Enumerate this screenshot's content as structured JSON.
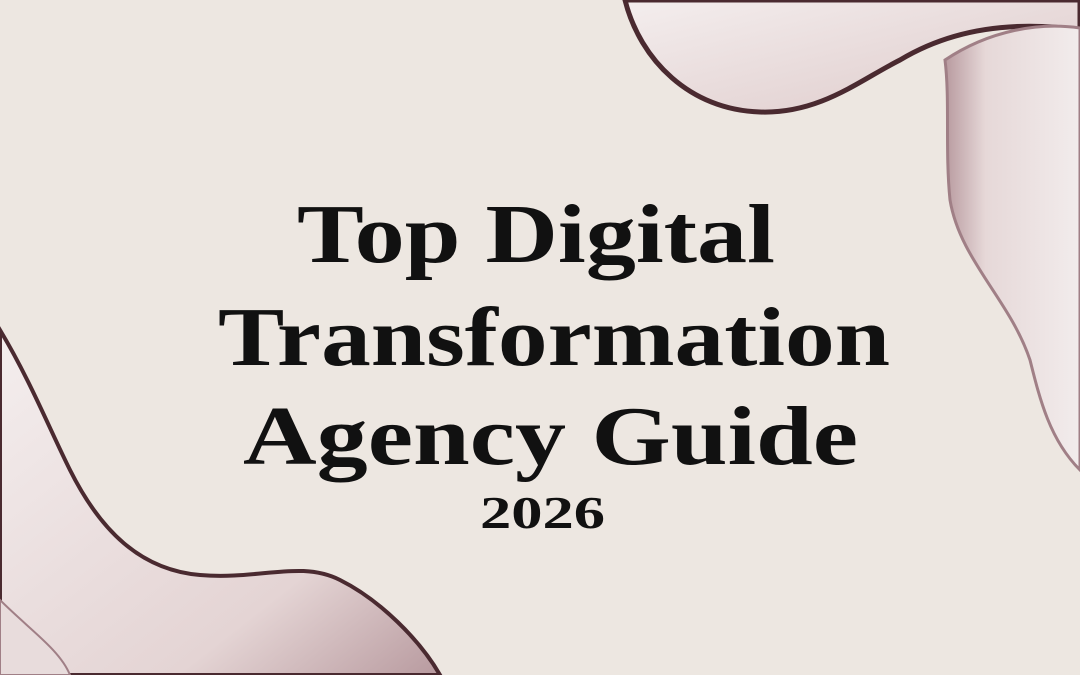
{
  "title_lines": [
    "Top Digital",
    "Transformation",
    "Agency Guide"
  ],
  "year": "2026",
  "colors": {
    "background": "#ede7e1",
    "ink_wash": "#e2d2d2",
    "ink_rim": "#4a2a30",
    "text": "#111111"
  }
}
